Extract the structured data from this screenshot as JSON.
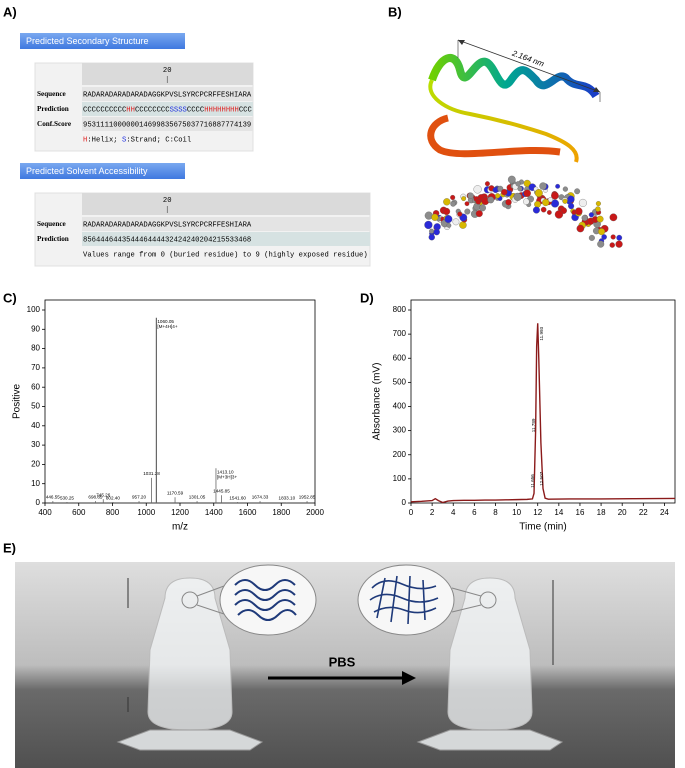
{
  "panel_labels": [
    "A)",
    "B)",
    "C)",
    "D)",
    "E)"
  ],
  "secondary_structure": {
    "title": "Predicted Secondary Structure",
    "position": 20,
    "rows": [
      [
        "Sequence",
        "RADARADARADARADAGGKPVSLSYRCPCRFFESHIARA"
      ],
      [
        "Prediction",
        "CCCCCCCCCCHHCCCCCCCCSSSSCCCCHHHHHHHHCCC"
      ],
      [
        "Conf.Score",
        "953111100000014699835675037716887774139"
      ]
    ],
    "legend": "H:Helix; S:Strand; C:Coil"
  },
  "solvent_accessibility": {
    "title": "Predicted Solvent Accessibility",
    "position": 20,
    "rows": [
      [
        "Sequence",
        "RADARADARADARADAGGKPVSLSYRCPCRFFESHIARA"
      ],
      [
        "Prediction",
        "856444644354446444432424240204215533468"
      ]
    ],
    "note": "Values range from 0 (buried residue) to 9 (highly exposed residue)"
  },
  "structure_model": {
    "distance_label": "2.164 nm"
  },
  "chart_data": [
    {
      "type": "stem",
      "xlabel": "m/z",
      "ylabel": "Positive",
      "x": [
        446.55,
        530.25,
        698.85,
        745.26,
        {
          "value": 802.4,
          "label": "802.40"
        },
        {
          "value": 957.2,
          "label": "957.20"
        },
        1031.28,
        1060.05,
        1170.59,
        1301.05,
        {
          "value": 1413.1,
          "label": "1413.10"
        },
        1445.85,
        {
          "value": 1541.6,
          "label": "1541.60"
        },
        1674.33,
        {
          "value": 1833.1,
          "label": "1833.10"
        },
        1952.85
      ],
      "values": [
        1,
        0.5,
        1,
        2,
        0.5,
        1,
        13,
        96,
        3,
        1,
        18,
        4,
        0.5,
        1,
        0.3,
        1
      ],
      "ion_labels": [
        null,
        null,
        null,
        null,
        null,
        null,
        null,
        "[M+4H]4+",
        null,
        null,
        "[M+3H]3+",
        null,
        null,
        null,
        null,
        null
      ],
      "color": "#666666",
      "xlim": [
        400,
        2000
      ],
      "xticks": [
        400,
        600,
        800,
        1000,
        1200,
        1400,
        1600,
        1800,
        2000
      ],
      "ylim": [
        0,
        100
      ],
      "yticks": [
        0,
        10,
        20,
        30,
        40,
        50,
        60,
        70,
        80,
        90,
        100
      ]
    },
    {
      "type": "line",
      "xlabel": "Time (min)",
      "ylabel": "Absorbance (mV)",
      "x": [
        0,
        1,
        2,
        2.3,
        2.6,
        3,
        3.5,
        4,
        5,
        6,
        7,
        8,
        9,
        10,
        11,
        11.5,
        11.65,
        11.8,
        11.9,
        12.0,
        12.1,
        12.3,
        12.5,
        12.7,
        13,
        15,
        18,
        21,
        25
      ],
      "values": [
        5,
        7,
        10,
        18,
        10,
        2,
        8,
        10,
        11,
        11,
        12,
        12,
        13,
        14,
        15,
        17,
        40,
        300,
        650,
        745,
        600,
        250,
        60,
        20,
        16,
        17,
        17,
        18,
        19
      ],
      "peak_labels": [
        11.656,
        11.789,
        11.993,
        12.507
      ],
      "color": "#8b1a1a",
      "xlim": [
        0,
        25
      ],
      "xticks": [
        0,
        2,
        4,
        6,
        8,
        10,
        12,
        14,
        16,
        18,
        20,
        22,
        24
      ],
      "ylim": [
        0,
        800
      ],
      "yticks": [
        0,
        100,
        200,
        300,
        400,
        500,
        600,
        700,
        800
      ]
    }
  ],
  "photo": {
    "arrow_label": "PBS"
  }
}
